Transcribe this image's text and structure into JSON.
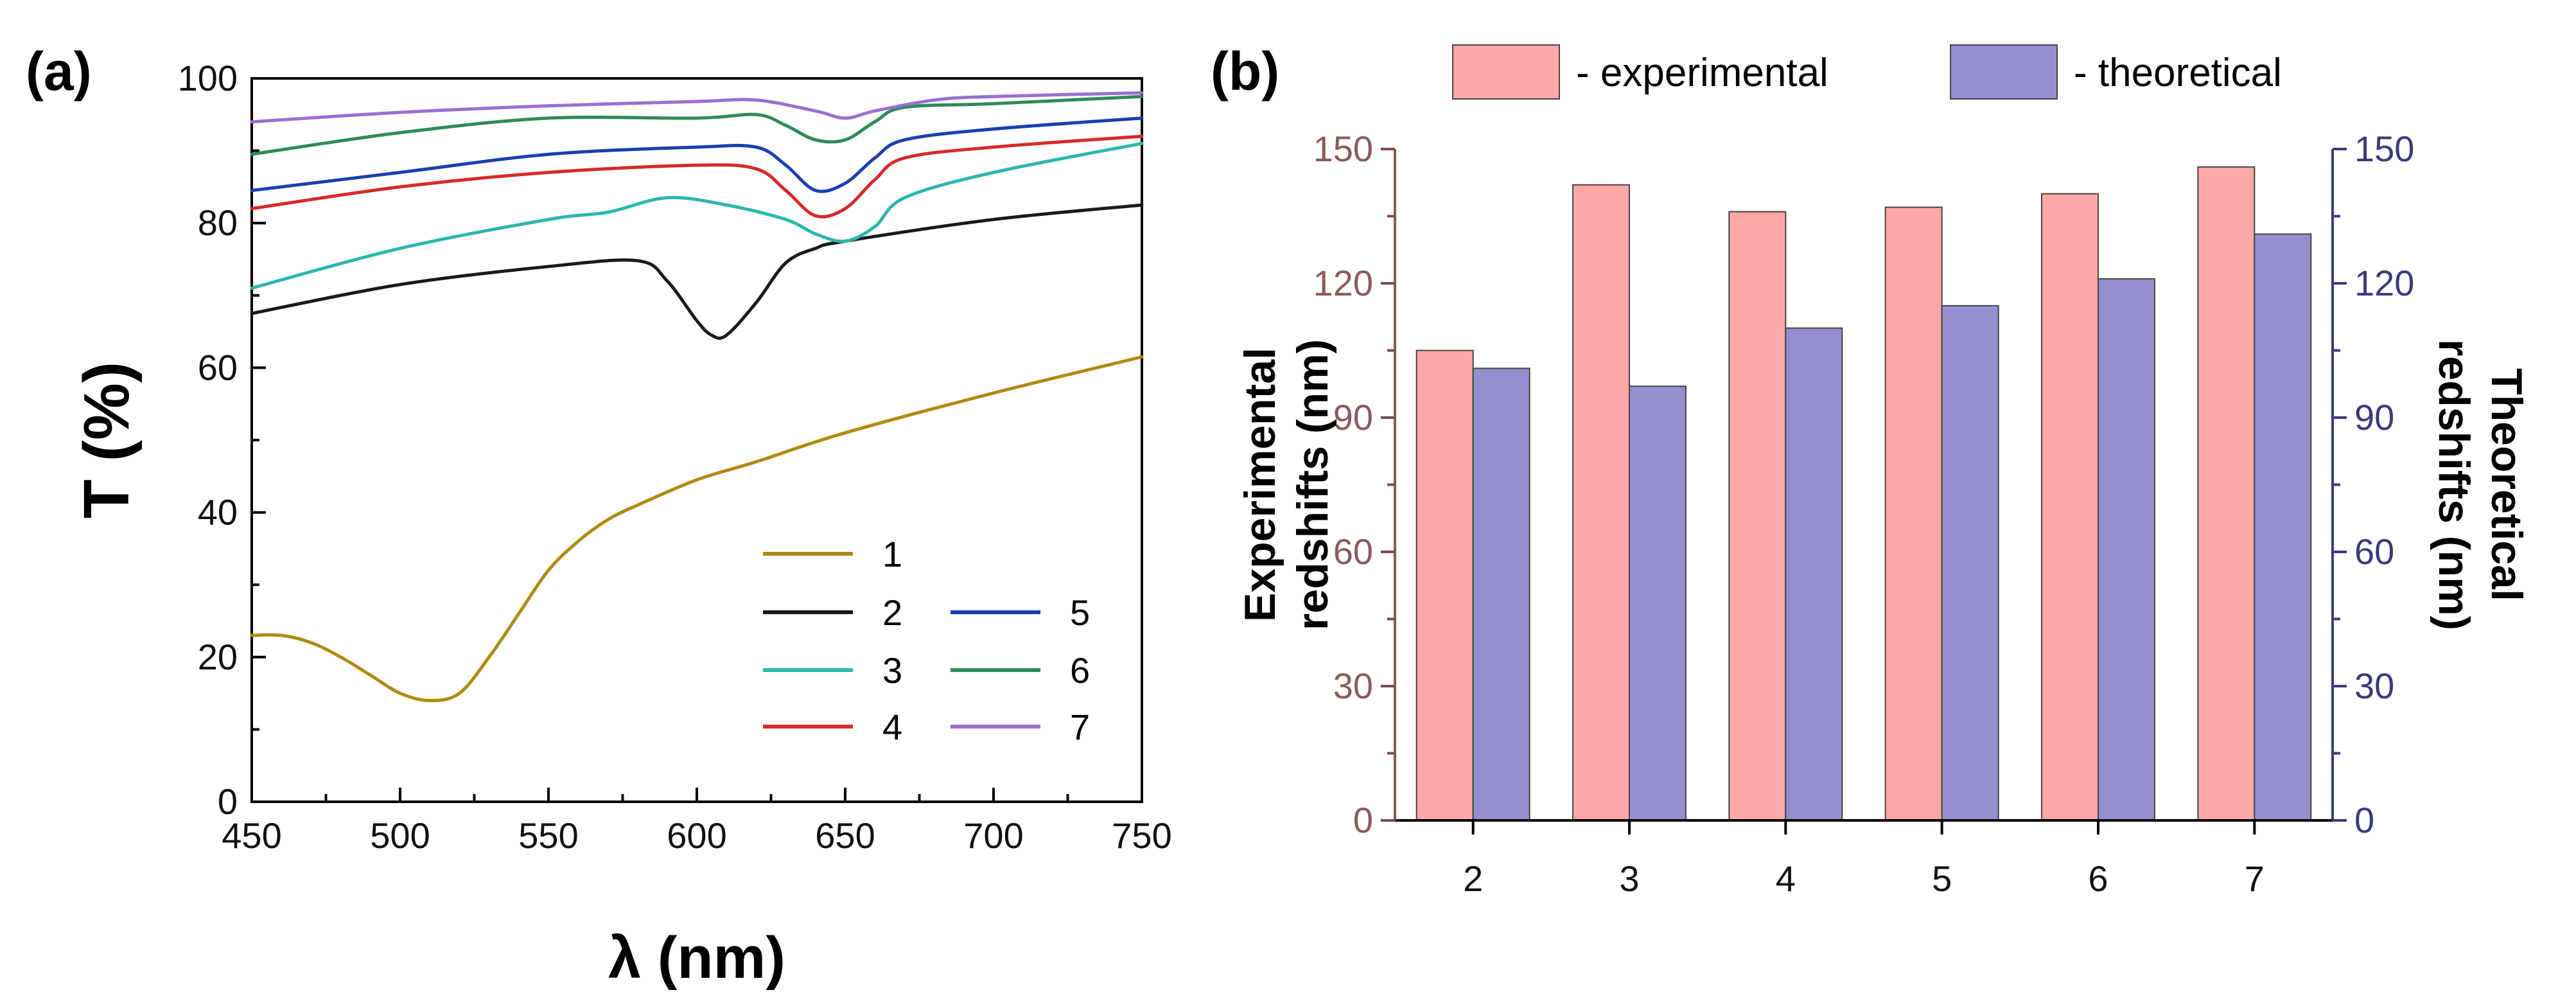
{
  "panel_a_label": "(a)",
  "panel_b_label": "(b)",
  "colors": {
    "s1": "#b08a10",
    "s2": "#1a1a1a",
    "s3": "#2bb6ad",
    "s4": "#d42a2a",
    "s5": "#1a3fae",
    "s6": "#2e8b57",
    "s7": "#9b6fd1",
    "exp": "#ffa8a8",
    "theo": "#9490cf",
    "left_axis_b": "#8a5a5a",
    "right_axis_b": "#3b3a7a"
  },
  "chart_data": [
    {
      "type": "line",
      "panel": "a",
      "title": "",
      "xlabel": "λ (nm)",
      "ylabel": "T (%)",
      "xlim": [
        450,
        750
      ],
      "ylim": [
        0,
        100
      ],
      "xticks": [
        450,
        500,
        550,
        600,
        650,
        700,
        750
      ],
      "yticks": [
        0,
        20,
        40,
        60,
        80,
        100
      ],
      "legend_position": "bottom-right",
      "series": [
        {
          "name": "1",
          "color_key": "s1",
          "x": [
            450,
            460,
            470,
            480,
            490,
            500,
            510,
            520,
            530,
            540,
            550,
            560,
            570,
            580,
            600,
            620,
            650,
            700,
            750
          ],
          "y": [
            23,
            23,
            22,
            20,
            17.5,
            15,
            14,
            15,
            20,
            26,
            32,
            36,
            39,
            41,
            44.5,
            47,
            51,
            56.5,
            61.5
          ]
        },
        {
          "name": "2",
          "color_key": "s2",
          "x": [
            450,
            500,
            550,
            580,
            590,
            600,
            605,
            610,
            620,
            630,
            640,
            650,
            700,
            750
          ],
          "y": [
            67.5,
            71.5,
            74,
            74.8,
            72,
            66.5,
            64.5,
            64.5,
            69,
            74.5,
            76.5,
            77.5,
            80.5,
            82.5
          ]
        },
        {
          "name": "3",
          "color_key": "s3",
          "x": [
            450,
            500,
            550,
            570,
            590,
            610,
            630,
            640,
            650,
            660,
            670,
            700,
            750
          ],
          "y": [
            71,
            76.5,
            80.5,
            81.5,
            83.5,
            82.5,
            80.5,
            78.5,
            77.5,
            79.5,
            83.5,
            87,
            91
          ]
        },
        {
          "name": "4",
          "color_key": "s4",
          "x": [
            450,
            500,
            550,
            600,
            620,
            630,
            640,
            650,
            660,
            670,
            700,
            750
          ],
          "y": [
            82,
            85,
            87,
            88,
            87.5,
            84.5,
            81,
            82,
            86,
            89,
            90.5,
            92
          ]
        },
        {
          "name": "5",
          "color_key": "s5",
          "x": [
            450,
            500,
            550,
            600,
            620,
            630,
            640,
            650,
            660,
            670,
            700,
            750
          ],
          "y": [
            84.5,
            87,
            89.5,
            90.5,
            90.5,
            88,
            84.5,
            85.5,
            89,
            91.5,
            93,
            94.5
          ]
        },
        {
          "name": "6",
          "color_key": "s6",
          "x": [
            450,
            500,
            550,
            600,
            620,
            630,
            640,
            650,
            660,
            670,
            700,
            750
          ],
          "y": [
            89.5,
            92.5,
            94.5,
            94.5,
            95,
            93.5,
            91.5,
            91.5,
            94,
            96,
            96.5,
            97.5
          ]
        },
        {
          "name": "7",
          "color_key": "s7",
          "x": [
            450,
            500,
            550,
            600,
            620,
            640,
            650,
            660,
            680,
            700,
            750
          ],
          "y": [
            94,
            95.3,
            96.2,
            96.8,
            97,
            95.5,
            94.5,
            95.5,
            97,
            97.5,
            98
          ]
        }
      ]
    },
    {
      "type": "bar",
      "panel": "b",
      "title": "",
      "xlabel": "",
      "ylabel": "Experimental redshifts (nm)",
      "ylabel_lines": [
        "Experimental",
        "redshifts (nm)"
      ],
      "ylabel_right": "Theoretical redshifts (nm)",
      "ylabel_right_lines": [
        "Theoretical",
        "redshifts (nm)"
      ],
      "ylim": [
        0,
        150
      ],
      "ylim_right": [
        0,
        150
      ],
      "yticks": [
        0,
        30,
        60,
        90,
        120,
        150
      ],
      "categories": [
        "2",
        "3",
        "4",
        "5",
        "6",
        "7"
      ],
      "legend_position": "top",
      "series": [
        {
          "name": "- experimental",
          "color_key": "exp",
          "axis": "left",
          "values": [
            105,
            142,
            136,
            137,
            140,
            146
          ]
        },
        {
          "name": "- theoretical",
          "color_key": "theo",
          "axis": "right",
          "values": [
            101,
            97,
            110,
            115,
            121,
            131
          ]
        }
      ]
    }
  ]
}
